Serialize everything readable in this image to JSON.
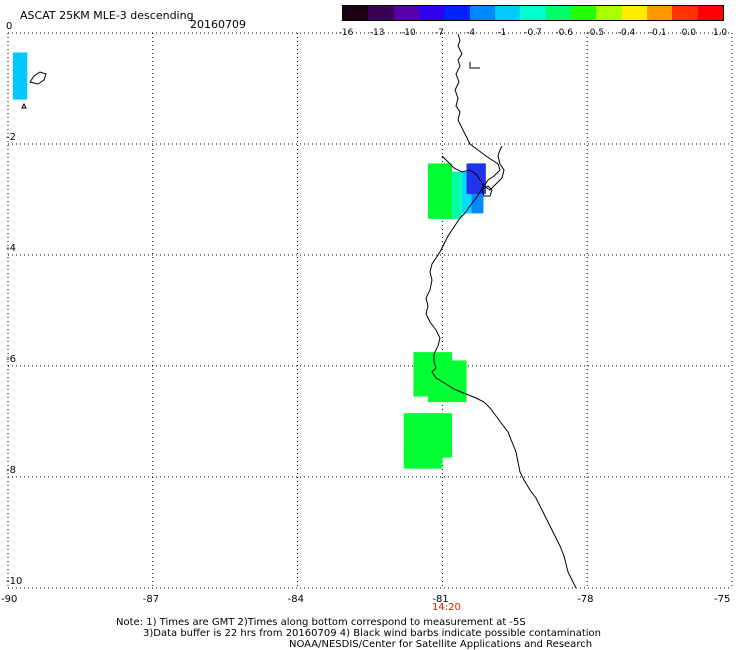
{
  "header": {
    "title": "ASCAT 25KM MLE-3 descending",
    "date": "20160709"
  },
  "colorbar": {
    "labels": [
      "-16",
      "-13",
      "-10",
      "-7",
      "-4",
      "-1",
      "-0.7",
      "-0.6",
      "-0.5",
      "-0.4",
      "-0.1",
      "0.0",
      "1.0"
    ],
    "colors": [
      "#1a0010",
      "#3a0055",
      "#5a00aa",
      "#3300ee",
      "#0022ff",
      "#0088ff",
      "#00ccff",
      "#00ffcc",
      "#00ff66",
      "#22ff00",
      "#aaff00",
      "#ffee00",
      "#ff9900",
      "#ff3300",
      "#ff0000"
    ]
  },
  "axes": {
    "x_ticks": [
      "-90",
      "-87",
      "-84",
      "-81",
      "-78",
      "-75"
    ],
    "y_ticks": [
      "0",
      "-2",
      "-4",
      "-6",
      "-8",
      "-10"
    ],
    "time_label": "14:20"
  },
  "data_cells": [
    {
      "lon": -89.9,
      "lat_top": -0.35,
      "lon_right": -89.6,
      "lat_bottom": -1.2,
      "color": "#00c8ff"
    },
    {
      "lon": -81.3,
      "lat_top": -2.35,
      "lon_right": -80.8,
      "lat_bottom": -3.35,
      "color": "#00ff33"
    },
    {
      "lon": -80.8,
      "lat_top": -2.5,
      "lon_right": -80.6,
      "lat_bottom": -3.35,
      "color": "#00ffaa"
    },
    {
      "lon": -80.6,
      "lat_top": -2.5,
      "lon_right": -80.4,
      "lat_bottom": -3.25,
      "color": "#00ddff"
    },
    {
      "lon": -80.4,
      "lat_top": -2.35,
      "lon_right": -80.15,
      "lat_bottom": -3.25,
      "color": "#0088ff"
    },
    {
      "lon": -80.5,
      "lat_top": -2.35,
      "lon_right": -80.1,
      "lat_bottom": -2.9,
      "color": "#2233ee"
    },
    {
      "lon": -81.6,
      "lat_top": -5.75,
      "lon_right": -80.8,
      "lat_bottom": -6.55,
      "color": "#00ff33"
    },
    {
      "lon": -81.3,
      "lat_top": -5.9,
      "lon_right": -80.5,
      "lat_bottom": -6.65,
      "color": "#00ff33"
    },
    {
      "lon": -81.8,
      "lat_top": -6.85,
      "lon_right": -80.8,
      "lat_bottom": -7.65,
      "color": "#00ff33"
    },
    {
      "lon": -81.8,
      "lat_top": -7.6,
      "lon_right": -81.0,
      "lat_bottom": -7.85,
      "color": "#00ff33"
    }
  ],
  "notes": {
    "line1": "Note: 1) Times are GMT 2)Times along bottom correspond to measurement at -5S",
    "line2": "3)Data buffer is 22 hrs from 20160709 4) Black wind barbs indicate possible contamination",
    "line3": "NOAA/NESDIS/Center for Satellite Applications and Research"
  }
}
